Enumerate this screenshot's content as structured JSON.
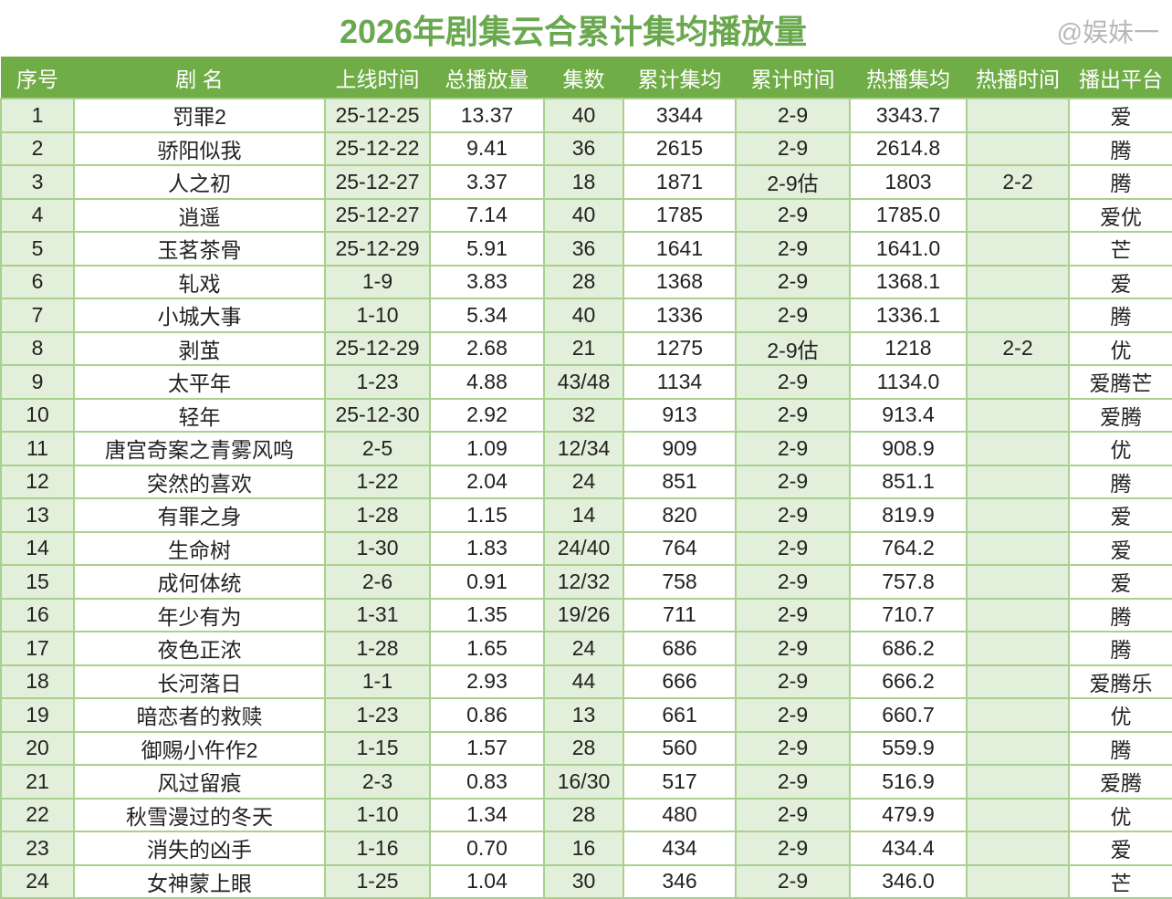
{
  "title": "2026年剧集云合累计集均播放量",
  "columns": [
    "序号",
    "剧  名",
    "上线时间",
    "总播放量",
    "集数",
    "累计集均",
    "累计时间",
    "热播集均",
    "热播时间",
    "播出平台"
  ],
  "rows": [
    [
      "1",
      "罚罪2",
      "25-12-25",
      "13.37",
      "40",
      "3344",
      "2-9",
      "3343.7",
      "",
      "爱"
    ],
    [
      "2",
      "骄阳似我",
      "25-12-22",
      "9.41",
      "36",
      "2615",
      "2-9",
      "2614.8",
      "",
      "腾"
    ],
    [
      "3",
      "人之初",
      "25-12-27",
      "3.37",
      "18",
      "1871",
      "2-9估",
      "1803",
      "2-2",
      "腾"
    ],
    [
      "4",
      "逍遥",
      "25-12-27",
      "7.14",
      "40",
      "1785",
      "2-9",
      "1785.0",
      "",
      "爱优"
    ],
    [
      "5",
      "玉茗茶骨",
      "25-12-29",
      "5.91",
      "36",
      "1641",
      "2-9",
      "1641.0",
      "",
      "芒"
    ],
    [
      "6",
      "轧戏",
      "1-9",
      "3.83",
      "28",
      "1368",
      "2-9",
      "1368.1",
      "",
      "爱"
    ],
    [
      "7",
      "小城大事",
      "1-10",
      "5.34",
      "40",
      "1336",
      "2-9",
      "1336.1",
      "",
      "腾"
    ],
    [
      "8",
      "剥茧",
      "25-12-29",
      "2.68",
      "21",
      "1275",
      "2-9估",
      "1218",
      "2-2",
      "优"
    ],
    [
      "9",
      "太平年",
      "1-23",
      "4.88",
      "43/48",
      "1134",
      "2-9",
      "1134.0",
      "",
      "爱腾芒"
    ],
    [
      "10",
      "轻年",
      "25-12-30",
      "2.92",
      "32",
      "913",
      "2-9",
      "913.4",
      "",
      "爱腾"
    ],
    [
      "11",
      "唐宫奇案之青雾风鸣",
      "2-5",
      "1.09",
      "12/34",
      "909",
      "2-9",
      "908.9",
      "",
      "优"
    ],
    [
      "12",
      "突然的喜欢",
      "1-22",
      "2.04",
      "24",
      "851",
      "2-9",
      "851.1",
      "",
      "腾"
    ],
    [
      "13",
      "有罪之身",
      "1-28",
      "1.15",
      "14",
      "820",
      "2-9",
      "819.9",
      "",
      "爱"
    ],
    [
      "14",
      "生命树",
      "1-30",
      "1.83",
      "24/40",
      "764",
      "2-9",
      "764.2",
      "",
      "爱"
    ],
    [
      "15",
      "成何体统",
      "2-6",
      "0.91",
      "12/32",
      "758",
      "2-9",
      "757.8",
      "",
      "爱"
    ],
    [
      "16",
      "年少有为",
      "1-31",
      "1.35",
      "19/26",
      "711",
      "2-9",
      "710.7",
      "",
      "腾"
    ],
    [
      "17",
      "夜色正浓",
      "1-28",
      "1.65",
      "24",
      "686",
      "2-9",
      "686.2",
      "",
      "腾"
    ],
    [
      "18",
      "长河落日",
      "1-1",
      "2.93",
      "44",
      "666",
      "2-9",
      "666.2",
      "",
      "爱腾乐"
    ],
    [
      "19",
      "暗恋者的救赎",
      "1-23",
      "0.86",
      "13",
      "661",
      "2-9",
      "660.7",
      "",
      "优"
    ],
    [
      "20",
      "御赐小仵作2",
      "1-15",
      "1.57",
      "28",
      "560",
      "2-9",
      "559.9",
      "",
      "腾"
    ],
    [
      "21",
      "风过留痕",
      "2-3",
      "0.83",
      "16/30",
      "517",
      "2-9",
      "516.9",
      "",
      "爱腾"
    ],
    [
      "22",
      "秋雪漫过的冬天",
      "1-10",
      "1.34",
      "28",
      "480",
      "2-9",
      "479.9",
      "",
      "优"
    ],
    [
      "23",
      "消失的凶手",
      "1-16",
      "0.70",
      "16",
      "434",
      "2-9",
      "434.4",
      "",
      "爱"
    ],
    [
      "24",
      "女神蒙上眼",
      "1-25",
      "1.04",
      "30",
      "346",
      "2-9",
      "346.0",
      "",
      "芒"
    ]
  ],
  "watermark": "@娱妹一",
  "colors": {
    "header": "#70ad47",
    "shaded_column": "#e2efda",
    "border": "#a9d08e",
    "title": "#6aa84f"
  }
}
